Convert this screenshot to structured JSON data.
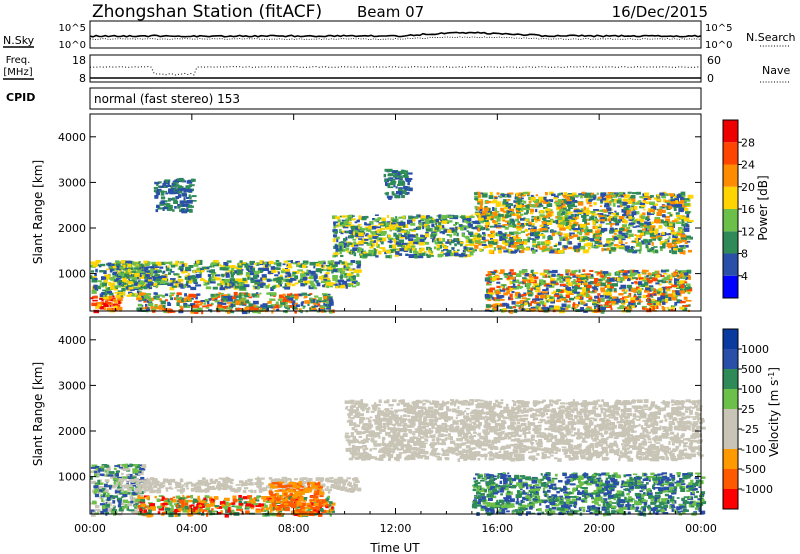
{
  "header": {
    "station": "Zhongshan Station (fitACF)",
    "beam": "Beam 07",
    "date": "16/Dec/2015"
  },
  "panels": {
    "nsky": {
      "label": "N.Sky",
      "right_label": "N.Search",
      "left_ticks": [
        "10^5",
        "10^0"
      ],
      "right_ticks": [
        "10^5",
        "10^0"
      ]
    },
    "freq": {
      "label_line1": "Freq.",
      "label_line2": "[MHz]",
      "right_label": "Nave",
      "left_ticks": [
        "18",
        "8"
      ],
      "right_ticks": [
        "60",
        "0"
      ],
      "cpid_label": "CPID"
    },
    "mode": {
      "text": "normal (fast stereo) 153"
    }
  },
  "colors": {
    "power": [
      "#0000ff",
      "#2a4fa8",
      "#2e8b57",
      "#6cc04a",
      "#ffd400",
      "#ff8c00",
      "#ff4500",
      "#ee0000"
    ],
    "velocity": [
      "#ff0000",
      "#ff5a00",
      "#ff9900",
      "#c8c4b6",
      "#c8c4b6",
      "#6cc04a",
      "#2e8b57",
      "#2a4fa8",
      "#0a3aa0"
    ]
  },
  "chart_data": [
    {
      "type": "heatmap",
      "name": "power",
      "ylabel": "Slant Range [km]",
      "yticks": [
        1000,
        2000,
        3000,
        4000
      ],
      "ylim": [
        180,
        4500
      ],
      "colorbar_label": "Power [dB]",
      "colorbar_ticks": [
        "4",
        "8",
        "12",
        "16",
        "20",
        "24",
        "28"
      ],
      "bands": [
        {
          "x": [
            0.0,
            1.2
          ],
          "y": [
            180,
            520
          ],
          "levels": [
            7,
            6,
            5,
            4
          ]
        },
        {
          "x": [
            0.0,
            2.0
          ],
          "y": [
            520,
            1300
          ],
          "levels": [
            1,
            2,
            3,
            4
          ]
        },
        {
          "x": [
            1.0,
            10.5
          ],
          "y": [
            700,
            1300
          ],
          "levels": [
            1,
            2,
            3,
            4
          ]
        },
        {
          "x": [
            1.8,
            9.5
          ],
          "y": [
            180,
            600
          ],
          "levels": [
            1,
            2,
            3,
            5,
            6
          ]
        },
        {
          "x": [
            2.5,
            4.0
          ],
          "y": [
            2400,
            3100
          ],
          "levels": [
            1,
            2
          ]
        },
        {
          "x": [
            9.5,
            15.0
          ],
          "y": [
            1400,
            2300
          ],
          "levels": [
            1,
            2,
            3,
            4
          ]
        },
        {
          "x": [
            11.5,
            12.5
          ],
          "y": [
            2700,
            3300
          ],
          "levels": [
            1,
            2
          ]
        },
        {
          "x": [
            15.0,
            23.5
          ],
          "y": [
            1500,
            2800
          ],
          "levels": [
            1,
            2,
            3,
            4,
            5
          ]
        },
        {
          "x": [
            15.5,
            23.5
          ],
          "y": [
            200,
            1100
          ],
          "levels": [
            1,
            2,
            3,
            4,
            5,
            6
          ]
        }
      ]
    },
    {
      "type": "heatmap",
      "name": "velocity",
      "xlabel": "Time UT",
      "ylabel": "Slant Range [km]",
      "yticks": [
        1000,
        2000,
        3000,
        4000
      ],
      "ylim": [
        180,
        4500
      ],
      "xticks": [
        "00:00",
        "04:00",
        "08:00",
        "12:00",
        "16:00",
        "20:00",
        "00:00"
      ],
      "colorbar_label": "Velocity [m s^-1]",
      "colorbar_ticks": [
        "-1000",
        "-500",
        "-100",
        "-25",
        "25",
        "100",
        "500",
        "1000"
      ],
      "bands": [
        {
          "x": [
            0.0,
            2.0
          ],
          "y": [
            200,
            1300
          ],
          "levels": [
            3,
            5,
            6,
            7
          ]
        },
        {
          "x": [
            1.0,
            10.5
          ],
          "y": [
            700,
            1000
          ],
          "levels": [
            3,
            4
          ]
        },
        {
          "x": [
            1.8,
            9.5
          ],
          "y": [
            180,
            600
          ],
          "levels": [
            0,
            1,
            2,
            5,
            6
          ]
        },
        {
          "x": [
            7.0,
            9.0
          ],
          "y": [
            200,
            900
          ],
          "levels": [
            1,
            2
          ]
        },
        {
          "x": [
            10.0,
            24.0
          ],
          "y": [
            1400,
            2700
          ],
          "levels": [
            3,
            4
          ]
        },
        {
          "x": [
            15.0,
            24.0
          ],
          "y": [
            200,
            1100
          ],
          "levels": [
            5,
            6,
            7
          ]
        }
      ]
    }
  ]
}
